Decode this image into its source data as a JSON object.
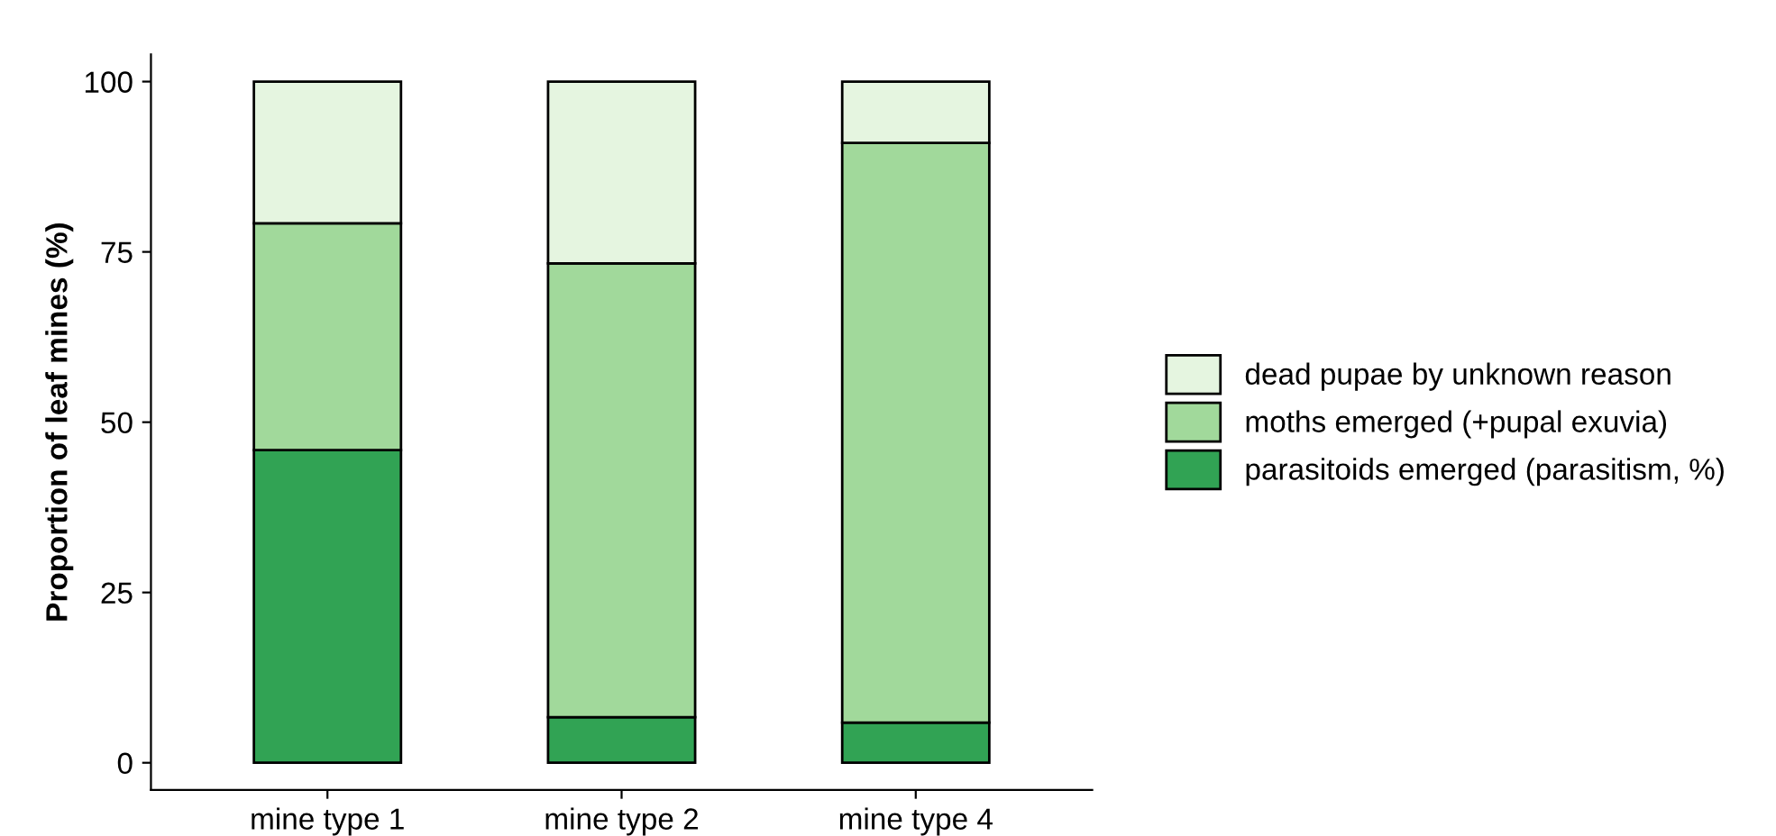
{
  "chart_data": {
    "type": "bar",
    "stacked": true,
    "ylabel": "Proportion of leaf mines (%)",
    "categories": [
      "mine type 1",
      "mine type 2",
      "mine type 4"
    ],
    "series": [
      {
        "name": "parasitoids emerged (parasitism, %)",
        "color": "#31a354",
        "values": [
          45.9,
          6.7,
          5.9
        ]
      },
      {
        "name": "moths emerged (+pupal exuvia)",
        "color": "#a1d99b",
        "values": [
          33.3,
          66.6,
          85.1
        ]
      },
      {
        "name": "dead pupae by unknown reason",
        "color": "#e5f5e0",
        "values": [
          20.8,
          26.7,
          9.0
        ]
      }
    ],
    "ylim": [
      -4,
      104
    ],
    "yticks": [
      0,
      25,
      50,
      75,
      100
    ],
    "grid": false,
    "legend": "right"
  }
}
